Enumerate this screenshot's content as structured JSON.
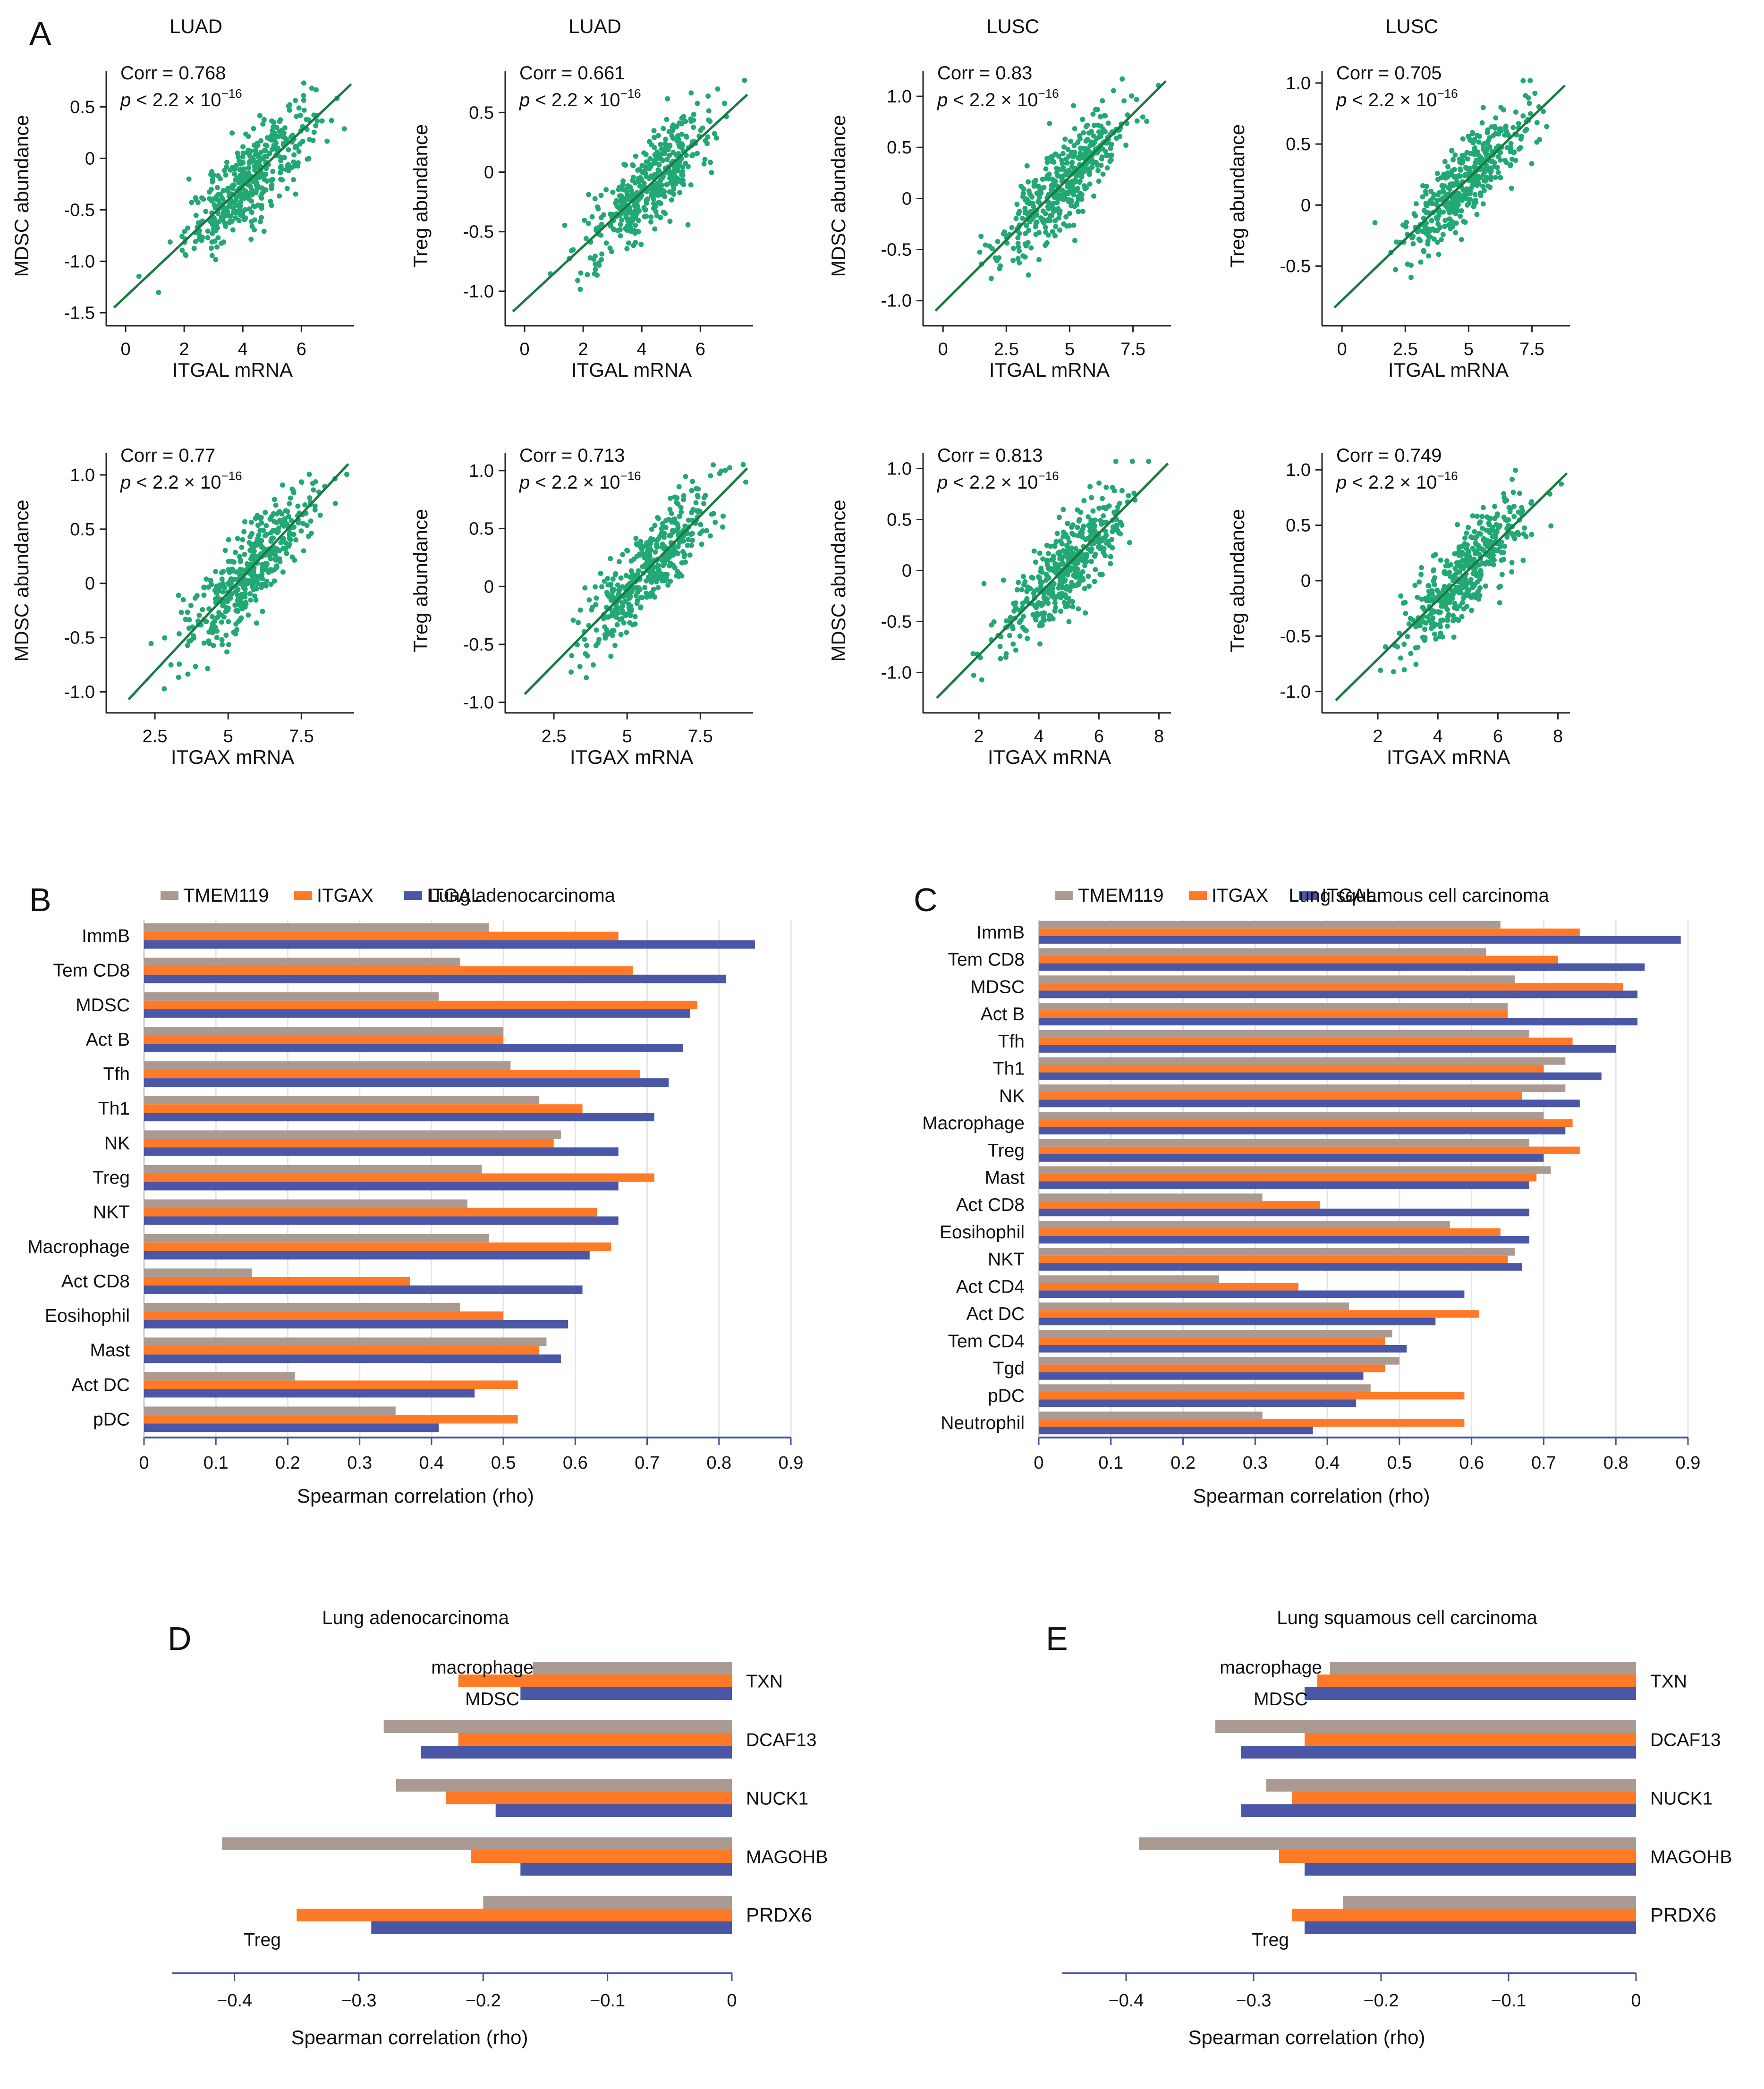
{
  "panel_labels": {
    "A": "A",
    "B": "B",
    "C": "C",
    "D": "D",
    "E": "E"
  },
  "colors": {
    "dot": "#22a874",
    "fit": "#1a7a40",
    "tmem119": "#aa9a92",
    "itgax": "#fe7a26",
    "itgal": "#4a56a6",
    "axis": "#3f4fa0",
    "grid": "#e5e5e5"
  },
  "chart_data": [
    {
      "id": "sc1",
      "type": "scatter",
      "title": "LUAD",
      "xlabel": "ITGAL mRNA",
      "ylabel": "MDSC abundance",
      "corr_text": "Corr = 0.768",
      "p_text": "p < 2.2 × 10",
      "p_exp": "−16",
      "xticks": [
        0,
        2,
        4,
        6
      ],
      "xtick_labels": [
        "0",
        "2",
        "4",
        "6"
      ],
      "yticks": [
        -1.5,
        -1.0,
        -0.5,
        0,
        0.5
      ],
      "ytick_labels": [
        "-1.5",
        "-1.0",
        "-0.5",
        "0",
        "0.5"
      ],
      "xlim": [
        -0.5,
        7.8
      ],
      "ylim": [
        -1.58,
        0.85
      ],
      "fit": {
        "x0": -0.4,
        "y0": -1.45,
        "x1": 7.7,
        "y1": 0.72
      }
    },
    {
      "id": "sc2",
      "type": "scatter",
      "title": "LUAD",
      "xlabel": "ITGAL mRNA",
      "ylabel": "Treg abundance",
      "corr_text": "Corr = 0.661",
      "p_text": "p < 2.2 × 10",
      "p_exp": "−16",
      "xticks": [
        0,
        2,
        4,
        6
      ],
      "xtick_labels": [
        "0",
        "2",
        "4",
        "6"
      ],
      "yticks": [
        -1.0,
        -0.5,
        0,
        0.5
      ],
      "ytick_labels": [
        "-1.0",
        "-0.5",
        "0",
        "0.5"
      ],
      "xlim": [
        -0.5,
        7.8
      ],
      "ylim": [
        -1.25,
        0.85
      ],
      "fit": {
        "x0": -0.4,
        "y0": -1.17,
        "x1": 7.6,
        "y1": 0.65
      }
    },
    {
      "id": "sc3",
      "type": "scatter",
      "title": "LUSC",
      "xlabel": "ITGAL mRNA",
      "ylabel": "MDSC abundance",
      "corr_text": "Corr = 0.83",
      "p_text": "p < 2.2 × 10",
      "p_exp": "−16",
      "xticks": [
        0,
        2.5,
        5,
        7.5
      ],
      "xtick_labels": [
        "0",
        "2.5",
        "5",
        "7.5"
      ],
      "yticks": [
        -1.0,
        -0.5,
        0,
        0.5,
        1.0
      ],
      "ytick_labels": [
        "-1.0",
        "-0.5",
        "0",
        "0.5",
        "1.0"
      ],
      "xlim": [
        -0.6,
        9.0
      ],
      "ylim": [
        -1.2,
        1.25
      ],
      "fit": {
        "x0": -0.3,
        "y0": -1.1,
        "x1": 8.8,
        "y1": 1.15
      }
    },
    {
      "id": "sc4",
      "type": "scatter",
      "title": "LUSC",
      "xlabel": "ITGAL mRNA",
      "ylabel": "Treg abundance",
      "corr_text": "Corr = 0.705",
      "p_text": "p < 2.2 × 10",
      "p_exp": "−16",
      "xticks": [
        0,
        2.5,
        5,
        7.5
      ],
      "xtick_labels": [
        "0",
        "2.5",
        "5",
        "7.5"
      ],
      "yticks": [
        -0.5,
        0,
        0.5,
        1.0
      ],
      "ytick_labels": [
        "-0.5",
        "0",
        "0.5",
        "1.0"
      ],
      "xlim": [
        -0.6,
        9.0
      ],
      "ylim": [
        -0.95,
        1.1
      ],
      "fit": {
        "x0": -0.3,
        "y0": -0.84,
        "x1": 8.8,
        "y1": 0.98
      }
    },
    {
      "id": "sc5",
      "type": "scatter",
      "title": "",
      "xlabel": "ITGAX mRNA",
      "ylabel": "MDSC abundance",
      "corr_text": "Corr = 0.77",
      "p_text": "p < 2.2 × 10",
      "p_exp": "−16",
      "xticks": [
        2.5,
        5,
        7.5
      ],
      "xtick_labels": [
        "2.5",
        "5",
        "7.5"
      ],
      "yticks": [
        -1.0,
        -0.5,
        0,
        0.5,
        1.0
      ],
      "ytick_labels": [
        "-1.0",
        "-0.5",
        "0",
        "0.5",
        "1.0"
      ],
      "xlim": [
        1.0,
        9.3
      ],
      "ylim": [
        -1.15,
        1.2
      ],
      "fit": {
        "x0": 1.6,
        "y0": -1.07,
        "x1": 9.1,
        "y1": 1.1
      }
    },
    {
      "id": "sc6",
      "type": "scatter",
      "title": "",
      "xlabel": "ITGAX mRNA",
      "ylabel": "Treg abundance",
      "corr_text": "Corr = 0.713",
      "p_text": "p < 2.2 × 10",
      "p_exp": "−16",
      "xticks": [
        2.5,
        5,
        7.5
      ],
      "xtick_labels": [
        "2.5",
        "5",
        "7.5"
      ],
      "yticks": [
        -1.0,
        -0.5,
        0,
        0.5,
        1.0
      ],
      "ytick_labels": [
        "-1.0",
        "-0.5",
        "0",
        "0.5",
        "1.0"
      ],
      "xlim": [
        1.0,
        9.3
      ],
      "ylim": [
        -1.05,
        1.15
      ],
      "fit": {
        "x0": 1.5,
        "y0": -0.93,
        "x1": 9.1,
        "y1": 1.02
      }
    },
    {
      "id": "sc7",
      "type": "scatter",
      "title": "",
      "xlabel": "ITGAX mRNA",
      "ylabel": "MDSC abundance",
      "corr_text": "Corr = 0.813",
      "p_text": "p < 2.2 × 10",
      "p_exp": "−16",
      "xticks": [
        2,
        4,
        6,
        8
      ],
      "xtick_labels": [
        "2",
        "4",
        "6",
        "8"
      ],
      "yticks": [
        -1.0,
        -0.5,
        0,
        0.5,
        1.0
      ],
      "ytick_labels": [
        "-1.0",
        "-0.5",
        "0",
        "0.5",
        "1.0"
      ],
      "xlim": [
        0.3,
        8.4
      ],
      "ylim": [
        -1.35,
        1.15
      ],
      "fit": {
        "x0": 0.6,
        "y0": -1.25,
        "x1": 8.3,
        "y1": 1.05
      }
    },
    {
      "id": "sc8",
      "type": "scatter",
      "title": "",
      "xlabel": "ITGAX mRNA",
      "ylabel": "Treg abundance",
      "corr_text": "Corr = 0.749",
      "p_text": "p < 2.2 × 10",
      "p_exp": "−16",
      "xticks": [
        2,
        4,
        6,
        8
      ],
      "xtick_labels": [
        "2",
        "4",
        "6",
        "8"
      ],
      "yticks": [
        -1.0,
        -0.5,
        0,
        0.5,
        1.0
      ],
      "ytick_labels": [
        "-1.0",
        "-0.5",
        "0",
        "0.5",
        "1.0"
      ],
      "xlim": [
        0.3,
        8.4
      ],
      "ylim": [
        -1.15,
        1.15
      ],
      "fit": {
        "x0": 0.6,
        "y0": -1.08,
        "x1": 8.3,
        "y1": 0.97
      }
    },
    {
      "id": "barB",
      "type": "bar",
      "orientation": "horizontal",
      "title": "Lung adenocarcinoma",
      "xlabel": "Spearman correlation (rho)",
      "xlim": [
        0,
        0.9
      ],
      "xticks": [
        0,
        0.1,
        0.2,
        0.3,
        0.4,
        0.5,
        0.6,
        0.7,
        0.8,
        0.9
      ],
      "xtick_labels": [
        "0",
        "0.1",
        "0.2",
        "0.3",
        "0.4",
        "0.5",
        "0.6",
        "0.7",
        "0.8",
        "0.9"
      ],
      "legend": [
        "TMEM119",
        "ITGAX",
        "ITGAL"
      ],
      "categories": [
        "ImmB",
        "Tem CD8",
        "MDSC",
        "Act B",
        "Tfh",
        "Th1",
        "NK",
        "Treg",
        "NKT",
        "Macrophage",
        "Act CD8",
        "Eosihophil",
        "Mast",
        "Act DC",
        "pDC"
      ],
      "series": [
        {
          "name": "TMEM119",
          "values": [
            0.48,
            0.44,
            0.41,
            0.5,
            0.51,
            0.55,
            0.58,
            0.47,
            0.45,
            0.48,
            0.15,
            0.44,
            0.56,
            0.21,
            0.35
          ]
        },
        {
          "name": "ITGAX",
          "values": [
            0.66,
            0.68,
            0.77,
            0.5,
            0.69,
            0.61,
            0.57,
            0.71,
            0.63,
            0.65,
            0.37,
            0.5,
            0.55,
            0.52,
            0.52
          ]
        },
        {
          "name": "ITGAL",
          "values": [
            0.85,
            0.81,
            0.76,
            0.75,
            0.73,
            0.71,
            0.66,
            0.66,
            0.66,
            0.62,
            0.61,
            0.59,
            0.58,
            0.46,
            0.41
          ]
        }
      ]
    },
    {
      "id": "barC",
      "type": "bar",
      "orientation": "horizontal",
      "title": "Lung squamous cell carcinoma",
      "xlabel": "Spearman correlation (rho)",
      "xlim": [
        0,
        0.9
      ],
      "xticks": [
        0,
        0.1,
        0.2,
        0.3,
        0.4,
        0.5,
        0.6,
        0.7,
        0.8,
        0.9
      ],
      "xtick_labels": [
        "0",
        "0.1",
        "0.2",
        "0.3",
        "0.4",
        "0.5",
        "0.6",
        "0.7",
        "0.8",
        "0.9"
      ],
      "legend": [
        "TMEM119",
        "ITGAX",
        "ITGAL"
      ],
      "categories": [
        "ImmB",
        "Tem CD8",
        "MDSC",
        "Act B",
        "Tfh",
        "Th1",
        "NK",
        "Macrophage",
        "Treg",
        "Mast",
        "Act CD8",
        "Eosihophil",
        "NKT",
        "Act CD4",
        "Act DC",
        "Tem CD4",
        "Tgd",
        "pDC",
        "Neutrophil"
      ],
      "series": [
        {
          "name": "TMEM119",
          "values": [
            0.64,
            0.62,
            0.66,
            0.65,
            0.68,
            0.73,
            0.73,
            0.7,
            0.68,
            0.71,
            0.31,
            0.57,
            0.66,
            0.25,
            0.43,
            0.49,
            0.5,
            0.46,
            0.31
          ]
        },
        {
          "name": "ITGAX",
          "values": [
            0.75,
            0.72,
            0.81,
            0.65,
            0.74,
            0.7,
            0.67,
            0.74,
            0.75,
            0.69,
            0.39,
            0.64,
            0.65,
            0.36,
            0.61,
            0.48,
            0.48,
            0.59,
            0.59
          ]
        },
        {
          "name": "ITGAL",
          "values": [
            0.89,
            0.84,
            0.83,
            0.83,
            0.8,
            0.78,
            0.75,
            0.73,
            0.7,
            0.68,
            0.68,
            0.68,
            0.67,
            0.59,
            0.55,
            0.51,
            0.45,
            0.44,
            0.38
          ]
        }
      ]
    },
    {
      "id": "barD",
      "type": "bar",
      "orientation": "horizontal",
      "title": "Lung adenocarcinoma",
      "xlabel": "Spearman correlation (rho)",
      "xlim": [
        -0.45,
        0
      ],
      "xticks": [
        -0.4,
        -0.3,
        -0.2,
        -0.1,
        0
      ],
      "xtick_labels": [
        "−0.4",
        "−0.3",
        "−0.2",
        "−0.1",
        "0"
      ],
      "categories": [
        "TXN",
        "DCAF13",
        "NUCK1",
        "MAGOHB",
        "PRDX6"
      ],
      "series": [
        {
          "name": "macrophage",
          "values": [
            -0.16,
            -0.28,
            -0.27,
            -0.41,
            -0.2
          ]
        },
        {
          "name": "MDSC",
          "values": [
            -0.22,
            -0.22,
            -0.23,
            -0.21,
            -0.35
          ]
        },
        {
          "name": "Treg",
          "values": [
            -0.17,
            -0.25,
            -0.19,
            -0.17,
            -0.29
          ]
        }
      ],
      "annotations": {
        "macrophage": "macrophage",
        "mdsc": "MDSC",
        "treg": "Treg"
      }
    },
    {
      "id": "barE",
      "type": "bar",
      "orientation": "horizontal",
      "title": "Lung squamous cell carcinoma",
      "xlabel": "Spearman correlation (rho)",
      "xlim": [
        -0.45,
        0
      ],
      "xticks": [
        -0.4,
        -0.3,
        -0.2,
        -0.1,
        0
      ],
      "xtick_labels": [
        "−0.4",
        "−0.3",
        "−0.2",
        "−0.1",
        "0"
      ],
      "categories": [
        "TXN",
        "DCAF13",
        "NUCK1",
        "MAGOHB",
        "PRDX6"
      ],
      "series": [
        {
          "name": "macrophage",
          "values": [
            -0.24,
            -0.33,
            -0.29,
            -0.39,
            -0.23
          ]
        },
        {
          "name": "MDSC",
          "values": [
            -0.25,
            -0.26,
            -0.27,
            -0.28,
            -0.27
          ]
        },
        {
          "name": "Treg",
          "values": [
            -0.26,
            -0.31,
            -0.31,
            -0.26,
            -0.26
          ]
        }
      ],
      "annotations": {
        "macrophage": "macrophage",
        "mdsc": "MDSC",
        "treg": "Treg"
      }
    }
  ]
}
